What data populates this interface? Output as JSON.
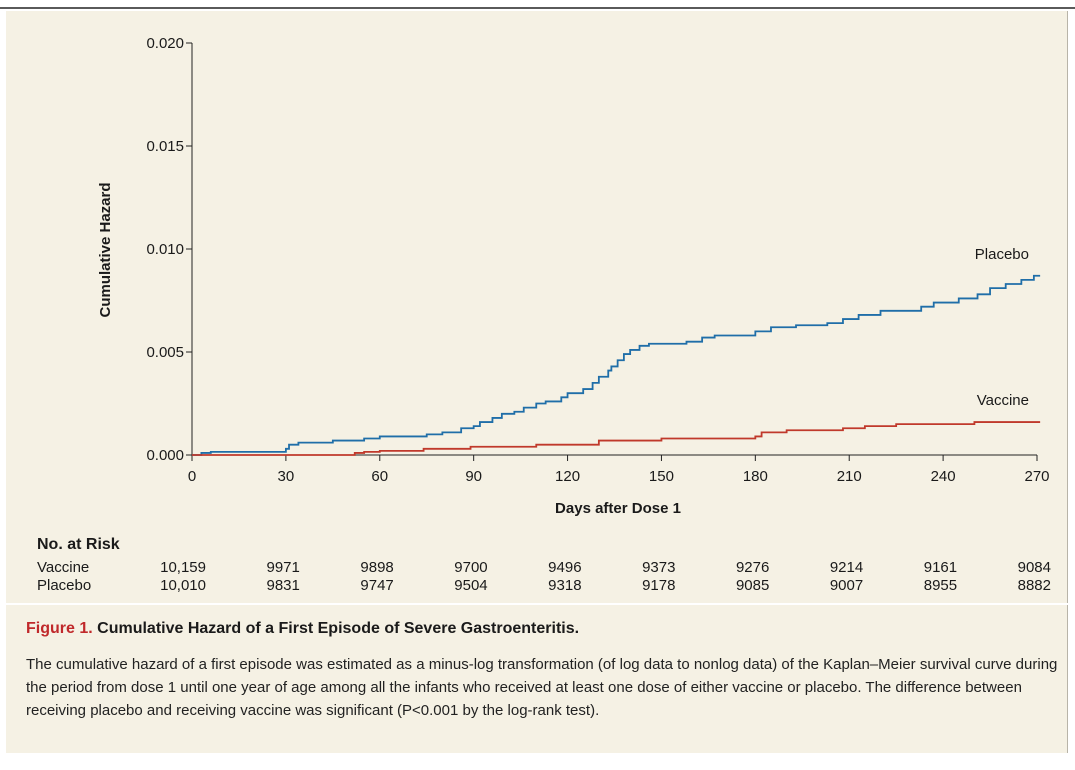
{
  "chart_data": {
    "type": "line",
    "xlabel": "Days after Dose 1",
    "ylabel": "Cumulative Hazard",
    "xlim": [
      0,
      270
    ],
    "ylim": [
      0,
      0.02
    ],
    "x_ticks": [
      "0",
      "30",
      "60",
      "90",
      "120",
      "150",
      "180",
      "210",
      "240",
      "270"
    ],
    "y_ticks": [
      "0.000",
      "0.005",
      "0.010",
      "0.015",
      "0.020"
    ],
    "grid": false,
    "series": [
      {
        "name": "Placebo",
        "color": "#1f6ea8",
        "step": true,
        "points": [
          [
            0,
            0.0
          ],
          [
            3,
            0.0001
          ],
          [
            6,
            0.00015
          ],
          [
            30,
            0.0003
          ],
          [
            31,
            0.0005
          ],
          [
            34,
            0.0006
          ],
          [
            45,
            0.0007
          ],
          [
            55,
            0.0008
          ],
          [
            60,
            0.0009
          ],
          [
            75,
            0.001
          ],
          [
            80,
            0.0011
          ],
          [
            86,
            0.0013
          ],
          [
            90,
            0.0014
          ],
          [
            92,
            0.0016
          ],
          [
            96,
            0.0018
          ],
          [
            99,
            0.002
          ],
          [
            103,
            0.0021
          ],
          [
            106,
            0.0023
          ],
          [
            110,
            0.0025
          ],
          [
            113,
            0.0026
          ],
          [
            118,
            0.0028
          ],
          [
            120,
            0.003
          ],
          [
            125,
            0.0032
          ],
          [
            128,
            0.0035
          ],
          [
            130,
            0.0038
          ],
          [
            133,
            0.0041
          ],
          [
            134,
            0.0043
          ],
          [
            136,
            0.0046
          ],
          [
            138,
            0.0049
          ],
          [
            140,
            0.0051
          ],
          [
            143,
            0.0053
          ],
          [
            146,
            0.0054
          ],
          [
            158,
            0.0055
          ],
          [
            163,
            0.0057
          ],
          [
            167,
            0.0058
          ],
          [
            180,
            0.006
          ],
          [
            185,
            0.0062
          ],
          [
            193,
            0.0063
          ],
          [
            203,
            0.0064
          ],
          [
            208,
            0.0066
          ],
          [
            213,
            0.0068
          ],
          [
            220,
            0.007
          ],
          [
            233,
            0.0072
          ],
          [
            237,
            0.0074
          ],
          [
            245,
            0.0076
          ],
          [
            251,
            0.0078
          ],
          [
            255,
            0.0081
          ],
          [
            260,
            0.0083
          ],
          [
            265,
            0.0085
          ],
          [
            269,
            0.0087
          ],
          [
            271,
            0.0087
          ]
        ]
      },
      {
        "name": "Vaccine",
        "color": "#c0392b",
        "step": true,
        "points": [
          [
            0,
            0.0
          ],
          [
            52,
            0.0001
          ],
          [
            55,
            0.00015
          ],
          [
            60,
            0.0002
          ],
          [
            74,
            0.0003
          ],
          [
            89,
            0.0004
          ],
          [
            110,
            0.0005
          ],
          [
            130,
            0.0007
          ],
          [
            150,
            0.0008
          ],
          [
            180,
            0.0009
          ],
          [
            182,
            0.0011
          ],
          [
            190,
            0.0012
          ],
          [
            208,
            0.0013
          ],
          [
            215,
            0.0014
          ],
          [
            225,
            0.0015
          ],
          [
            250,
            0.0016
          ],
          [
            271,
            0.0016
          ]
        ]
      }
    ],
    "risk_table": {
      "title": "No. at Risk",
      "rows": [
        {
          "label": "Vaccine",
          "values": [
            "10,159",
            "9971",
            "9898",
            "9700",
            "9496",
            "9373",
            "9276",
            "9214",
            "9161",
            "9084"
          ]
        },
        {
          "label": "Placebo",
          "values": [
            "10,010",
            "9831",
            "9747",
            "9504",
            "9318",
            "9178",
            "9085",
            "9007",
            "8955",
            "8882"
          ]
        }
      ]
    }
  },
  "caption": {
    "label": "Figure 1.",
    "title": "Cumulative Hazard of a First Episode of Severe Gastroenteritis.",
    "text": "The cumulative hazard of a first episode was estimated as a minus-log transformation (of log data to nonlog data) of the Kaplan–Meier survival curve during the period from dose 1 until one year of age among all the infants who received at least one dose of either vaccine or placebo. The difference between receiving placebo and receiving vaccine was significant (P<0.001 by the log-rank test)."
  }
}
